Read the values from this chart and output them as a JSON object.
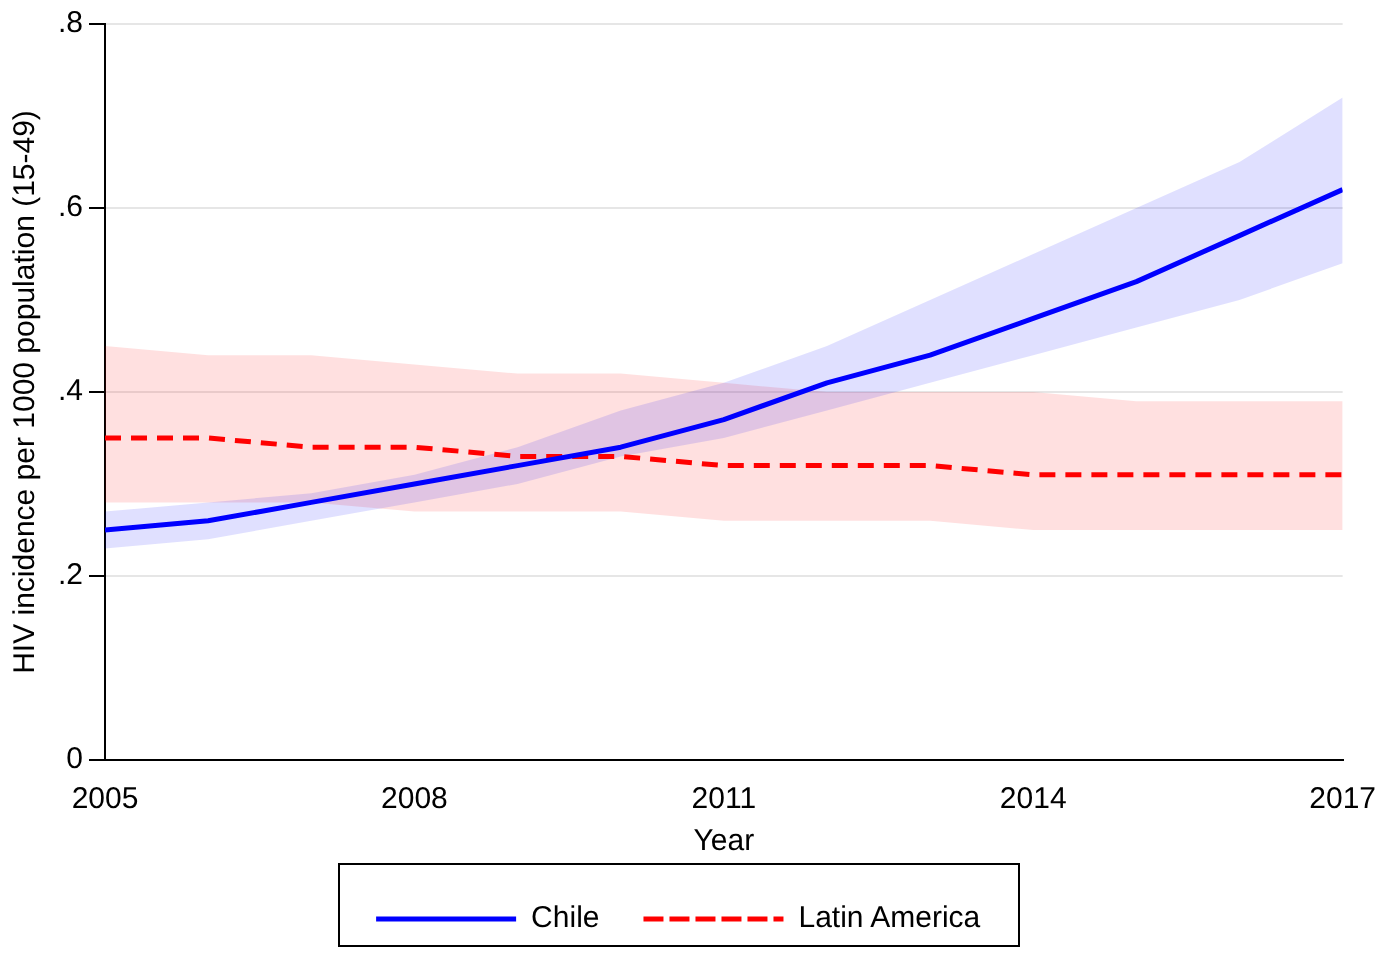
{
  "chart_data": {
    "type": "line",
    "xlabel": "Year",
    "ylabel": "HIV incidence per 1000 population (15-49)",
    "x": [
      2005,
      2006,
      2007,
      2008,
      2009,
      2010,
      2011,
      2012,
      2013,
      2014,
      2015,
      2016,
      2017
    ],
    "series": [
      {
        "name": "Chile",
        "color": "#0000ff",
        "line_style": "solid",
        "values": [
          0.25,
          0.26,
          0.28,
          0.3,
          0.32,
          0.34,
          0.37,
          0.41,
          0.44,
          0.48,
          0.52,
          0.57,
          0.62
        ],
        "lower": [
          0.23,
          0.24,
          0.26,
          0.28,
          0.3,
          0.33,
          0.35,
          0.38,
          0.41,
          0.44,
          0.47,
          0.5,
          0.54
        ],
        "upper": [
          0.27,
          0.28,
          0.29,
          0.31,
          0.34,
          0.38,
          0.41,
          0.45,
          0.5,
          0.55,
          0.6,
          0.65,
          0.72
        ]
      },
      {
        "name": "Latin America",
        "color": "#ff0000",
        "line_style": "dashed",
        "values": [
          0.35,
          0.35,
          0.34,
          0.34,
          0.33,
          0.33,
          0.32,
          0.32,
          0.32,
          0.31,
          0.31,
          0.31,
          0.31
        ],
        "lower": [
          0.28,
          0.28,
          0.28,
          0.27,
          0.27,
          0.27,
          0.26,
          0.26,
          0.26,
          0.25,
          0.25,
          0.25,
          0.25
        ],
        "upper": [
          0.45,
          0.44,
          0.44,
          0.43,
          0.42,
          0.42,
          0.41,
          0.4,
          0.4,
          0.4,
          0.39,
          0.39,
          0.39
        ]
      }
    ],
    "xlim": [
      2005,
      2017
    ],
    "xticks": [
      2005,
      2008,
      2011,
      2014,
      2017
    ],
    "ylim": [
      0,
      0.8
    ],
    "yticks": [
      {
        "value": 0,
        "label": "0"
      },
      {
        "value": 0.2,
        "label": ".2"
      },
      {
        "value": 0.4,
        "label": ".4"
      },
      {
        "value": 0.6,
        "label": ".6"
      },
      {
        "value": 0.8,
        "label": ".8"
      }
    ],
    "grid": "y",
    "legend": "bottom",
    "marker": "none"
  }
}
